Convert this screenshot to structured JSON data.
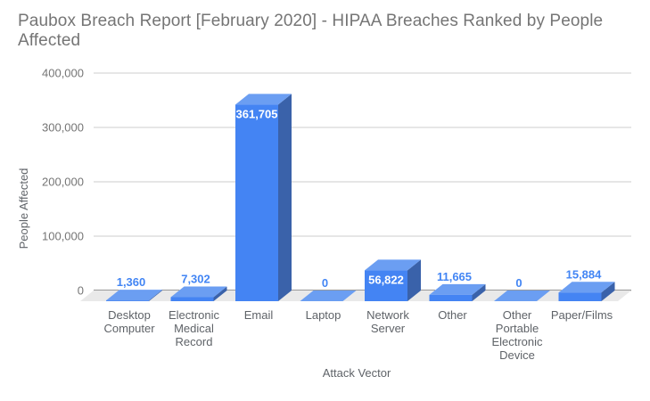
{
  "chart_data": {
    "type": "bar",
    "projection": "3d-column",
    "title": "Paubox Breach Report [February 2020] - HIPAA Breaches Ranked by People Affected",
    "xlabel": "Attack Vector",
    "ylabel": "People Affected",
    "categories": [
      "Desktop Computer",
      "Electronic Medical Record",
      "Email",
      "Laptop",
      "Network Server",
      "Other",
      "Other Portable Electronic Device",
      "Paper/Films"
    ],
    "category_lines": [
      [
        "Desktop",
        "Computer"
      ],
      [
        "Electronic",
        "Medical",
        "Record"
      ],
      [
        "Email"
      ],
      [
        "Laptop"
      ],
      [
        "Network",
        "Server"
      ],
      [
        "Other"
      ],
      [
        "Other",
        "Portable",
        "Electronic",
        "Device"
      ],
      [
        "Paper/Films"
      ]
    ],
    "values": [
      1360,
      7302,
      361705,
      0,
      56822,
      11665,
      0,
      15884
    ],
    "value_labels": [
      "1,360",
      "7,302",
      "361,705",
      "0",
      "56,822",
      "11,665",
      "0",
      "15,884"
    ],
    "ylim": [
      0,
      400000
    ],
    "ytick_values": [
      0,
      100000,
      200000,
      300000,
      400000
    ],
    "ytick_labels": [
      "0",
      "100,000",
      "200,000",
      "300,000",
      "400,000"
    ],
    "grid": true,
    "legend": "none",
    "colors": {
      "bar_front": "#4484f3",
      "bar_top": "#6b9ef2",
      "bar_side": "#3a62aa",
      "value_label": "#4285f4",
      "value_label_inside": "#ffffff",
      "grid": "#cccccc",
      "baseline": "#333333",
      "floor": "#e9e9e9",
      "title": "#757575",
      "tick_label": "#757575",
      "category_label": "#5f6368",
      "axis_title": "#5f6368"
    }
  }
}
